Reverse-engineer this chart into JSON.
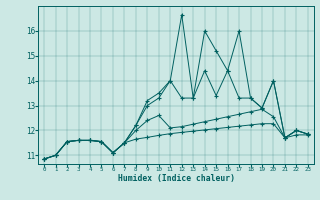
{
  "xlabel": "Humidex (Indice chaleur)",
  "bg_color": "#cce8e4",
  "line_color": "#006060",
  "xlim": [
    -0.5,
    23.5
  ],
  "ylim": [
    10.65,
    17.0
  ],
  "yticks": [
    11,
    12,
    13,
    14,
    15,
    16
  ],
  "xticks": [
    0,
    1,
    2,
    3,
    4,
    5,
    6,
    7,
    8,
    9,
    10,
    11,
    12,
    13,
    14,
    15,
    16,
    17,
    18,
    19,
    20,
    21,
    22,
    23
  ],
  "s1": [
    10.85,
    11.0,
    11.55,
    11.6,
    11.6,
    11.55,
    11.1,
    11.5,
    12.2,
    13.2,
    13.5,
    14.0,
    16.65,
    13.3,
    16.0,
    15.2,
    14.4,
    16.0,
    13.3,
    12.9,
    14.0,
    11.7,
    12.0,
    11.85
  ],
  "s2": [
    10.85,
    11.0,
    11.55,
    11.6,
    11.6,
    11.55,
    11.1,
    11.5,
    12.2,
    13.0,
    13.3,
    14.0,
    13.3,
    13.3,
    14.4,
    13.4,
    14.4,
    13.3,
    13.3,
    12.9,
    14.0,
    11.7,
    12.0,
    11.85
  ],
  "s3": [
    10.85,
    11.0,
    11.55,
    11.6,
    11.6,
    11.55,
    11.1,
    11.5,
    12.0,
    12.4,
    12.6,
    12.1,
    12.15,
    12.25,
    12.35,
    12.45,
    12.55,
    12.65,
    12.75,
    12.85,
    12.55,
    11.7,
    12.0,
    11.85
  ],
  "s4": [
    10.85,
    11.0,
    11.55,
    11.6,
    11.6,
    11.55,
    11.1,
    11.5,
    11.65,
    11.72,
    11.8,
    11.87,
    11.92,
    11.97,
    12.02,
    12.07,
    12.12,
    12.17,
    12.22,
    12.27,
    12.27,
    11.7,
    11.82,
    11.82
  ]
}
